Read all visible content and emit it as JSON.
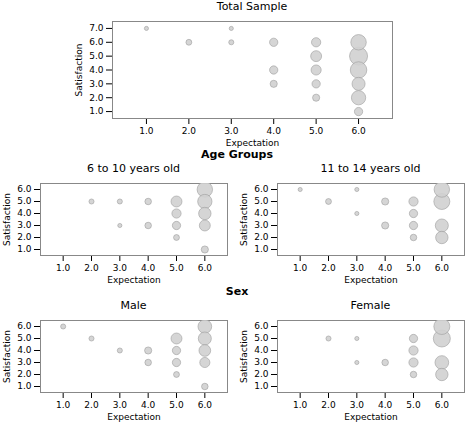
{
  "chart_data": [
    {
      "type": "bubble",
      "title": "Total Sample",
      "xlabel": "Expectation",
      "ylabel": "Satisfaction",
      "x": [
        1,
        3,
        2,
        3,
        4,
        5,
        6,
        5,
        6,
        4,
        5,
        6,
        4,
        5,
        6,
        5,
        6,
        6
      ],
      "y": [
        7,
        7,
        6,
        6,
        6,
        6,
        6,
        5,
        5,
        4,
        4,
        4,
        3,
        3,
        3,
        2,
        2,
        1
      ],
      "size": [
        2,
        2,
        4,
        3,
        8,
        10,
        28,
        14,
        38,
        8,
        12,
        32,
        6,
        8,
        20,
        6,
        24,
        8
      ],
      "color": "#d0d0d0",
      "xlim": [
        0.2,
        6.8
      ],
      "ylim": [
        0.5,
        7.5
      ],
      "xticks": [
        1,
        2,
        3,
        4,
        5,
        6
      ],
      "yticks": [
        1,
        2,
        3,
        4,
        5,
        6,
        7
      ],
      "grid": false
    },
    {
      "type": "bubble",
      "title": "6 to 10 years old",
      "annotations": [
        "Age Groups"
      ],
      "xlabel": "Expectation",
      "ylabel": "Satisfaction",
      "x": [
        2,
        3,
        4,
        5,
        6,
        5,
        6,
        3,
        4,
        5,
        6,
        5,
        6,
        6
      ],
      "y": [
        5,
        5,
        5,
        5,
        6,
        4,
        5,
        3,
        3,
        3,
        4,
        2,
        3,
        1
      ],
      "size": [
        3,
        3,
        5,
        14,
        28,
        10,
        24,
        2,
        5,
        8,
        18,
        4,
        14,
        6
      ],
      "color": "#d0d0d0",
      "xlim": [
        0.2,
        6.8
      ],
      "ylim": [
        0.5,
        6.5
      ],
      "xticks": [
        1,
        2,
        3,
        4,
        5,
        6
      ],
      "yticks": [
        1,
        2,
        3,
        4,
        5,
        6
      ],
      "grid": false
    },
    {
      "type": "bubble",
      "title": "11 to 14 years old",
      "xlabel": "Expectation",
      "ylabel": "Satisfaction",
      "x": [
        1,
        3,
        2,
        4,
        5,
        6,
        3,
        5,
        6,
        4,
        5,
        6,
        5,
        6
      ],
      "y": [
        6,
        6,
        5,
        5,
        5,
        6,
        4,
        4,
        5,
        3,
        3,
        3,
        2,
        2
      ],
      "size": [
        2,
        2,
        4,
        6,
        10,
        28,
        2,
        8,
        30,
        6,
        8,
        20,
        5,
        18
      ],
      "color": "#d0d0d0",
      "xlim": [
        0.2,
        6.8
      ],
      "ylim": [
        0.5,
        6.5
      ],
      "xticks": [
        1,
        2,
        3,
        4,
        5,
        6
      ],
      "yticks": [
        1,
        2,
        3,
        4,
        5,
        6
      ],
      "grid": false
    },
    {
      "type": "bubble",
      "title": "Male",
      "annotations": [
        "Sex"
      ],
      "xlabel": "Expectation",
      "ylabel": "Satisfaction",
      "x": [
        1,
        2,
        3,
        4,
        5,
        6,
        5,
        6,
        4,
        5,
        6,
        5,
        6,
        6
      ],
      "y": [
        6,
        5,
        4,
        4,
        5,
        6,
        4,
        5,
        3,
        3,
        4,
        2,
        3,
        1
      ],
      "size": [
        3,
        3,
        3,
        6,
        14,
        22,
        8,
        20,
        5,
        8,
        16,
        4,
        12,
        5
      ],
      "color": "#d0d0d0",
      "xlim": [
        0.2,
        6.8
      ],
      "ylim": [
        0.5,
        6.5
      ],
      "xticks": [
        1,
        2,
        3,
        4,
        5,
        6
      ],
      "yticks": [
        1,
        2,
        3,
        4,
        5,
        6
      ],
      "grid": false
    },
    {
      "type": "bubble",
      "title": "Female",
      "xlabel": "Expectation",
      "ylabel": "Satisfaction",
      "x": [
        2,
        3,
        5,
        6,
        5,
        6,
        3,
        4,
        5,
        6,
        5,
        6
      ],
      "y": [
        5,
        5,
        5,
        6,
        4,
        5,
        3,
        3,
        3,
        3,
        2,
        2
      ],
      "size": [
        3,
        2,
        8,
        30,
        10,
        34,
        2,
        5,
        10,
        22,
        5,
        18
      ],
      "color": "#d0d0d0",
      "xlim": [
        0.2,
        6.8
      ],
      "ylim": [
        0.5,
        6.5
      ],
      "xticks": [
        1,
        2,
        3,
        4,
        5,
        6
      ],
      "yticks": [
        1,
        2,
        3,
        4,
        5,
        6
      ],
      "grid": false
    }
  ]
}
